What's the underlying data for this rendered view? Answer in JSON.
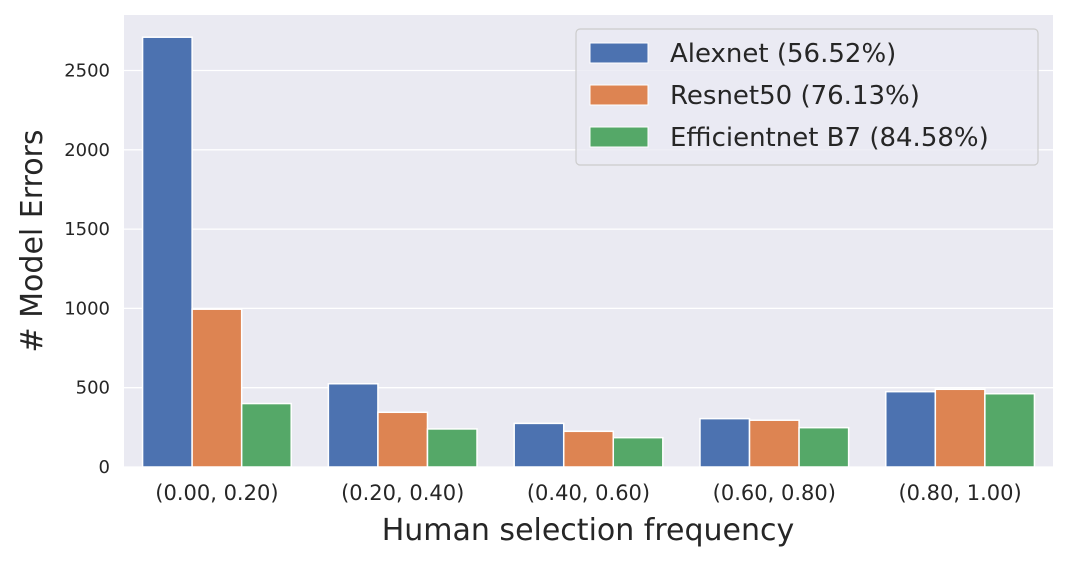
{
  "chart_data": {
    "type": "bar",
    "title": "",
    "xlabel": "Human selection frequency",
    "ylabel": "# Model Errors",
    "categories": [
      "(0.00, 0.20)",
      "(0.20, 0.40)",
      "(0.40, 0.60)",
      "(0.60, 0.80)",
      "(0.80, 1.00)"
    ],
    "series": [
      {
        "name": "Alexnet (56.52%)",
        "color": "#4c72b0",
        "values": [
          2710,
          525,
          275,
          305,
          475
        ]
      },
      {
        "name": "Resnet50 (76.13%)",
        "color": "#dd8452",
        "values": [
          995,
          345,
          225,
          295,
          490
        ]
      },
      {
        "name": "Efficientnet B7 (84.58%)",
        "color": "#55a868",
        "values": [
          400,
          240,
          185,
          248,
          462
        ]
      }
    ],
    "ylim": [
      0,
      2850
    ],
    "yticks": [
      0,
      500,
      1000,
      1500,
      2000,
      2500
    ],
    "grid": true,
    "legend_position": "top-right",
    "background": "#eaeaf2"
  }
}
